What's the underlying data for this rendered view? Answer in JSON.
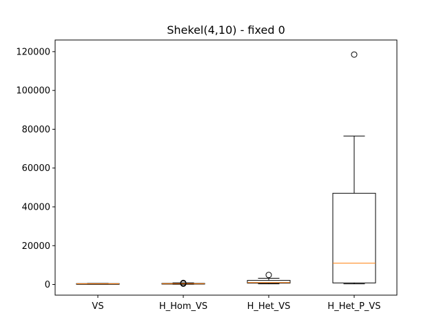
{
  "chart_data": {
    "type": "box",
    "title": "Shekel(4,10) - fixed 0",
    "xlabel": "",
    "ylabel": "",
    "ylim": [
      -5500,
      126000
    ],
    "yticks": [
      0,
      20000,
      40000,
      60000,
      80000,
      100000,
      120000
    ],
    "ytick_labels": [
      "0",
      "20000",
      "40000",
      "60000",
      "80000",
      "100000",
      "120000"
    ],
    "grid": false,
    "categories": [
      "VS",
      "H_Hom_VS",
      "H_Het_VS",
      "H_Het_P_VS"
    ],
    "boxes": [
      {
        "category": "VS",
        "whisker_low": 150,
        "q1": 250,
        "median": 350,
        "q3": 450,
        "whisker_high": 550,
        "outliers": []
      },
      {
        "category": "H_Hom_VS",
        "whisker_low": 100,
        "q1": 250,
        "median": 400,
        "q3": 550,
        "whisker_high": 800,
        "outliers": [
          400,
          800
        ]
      },
      {
        "category": "H_Het_VS",
        "whisker_low": 300,
        "q1": 700,
        "median": 1000,
        "q3": 2100,
        "whisker_high": 3200,
        "outliers": [
          4900
        ]
      },
      {
        "category": "H_Het_P_VS",
        "whisker_low": 300,
        "q1": 800,
        "median": 11000,
        "q3": 47000,
        "whisker_high": 76500,
        "outliers": [
          118500
        ]
      }
    ],
    "colors": {
      "box": "#000000",
      "median": "#ff7f0e"
    }
  }
}
